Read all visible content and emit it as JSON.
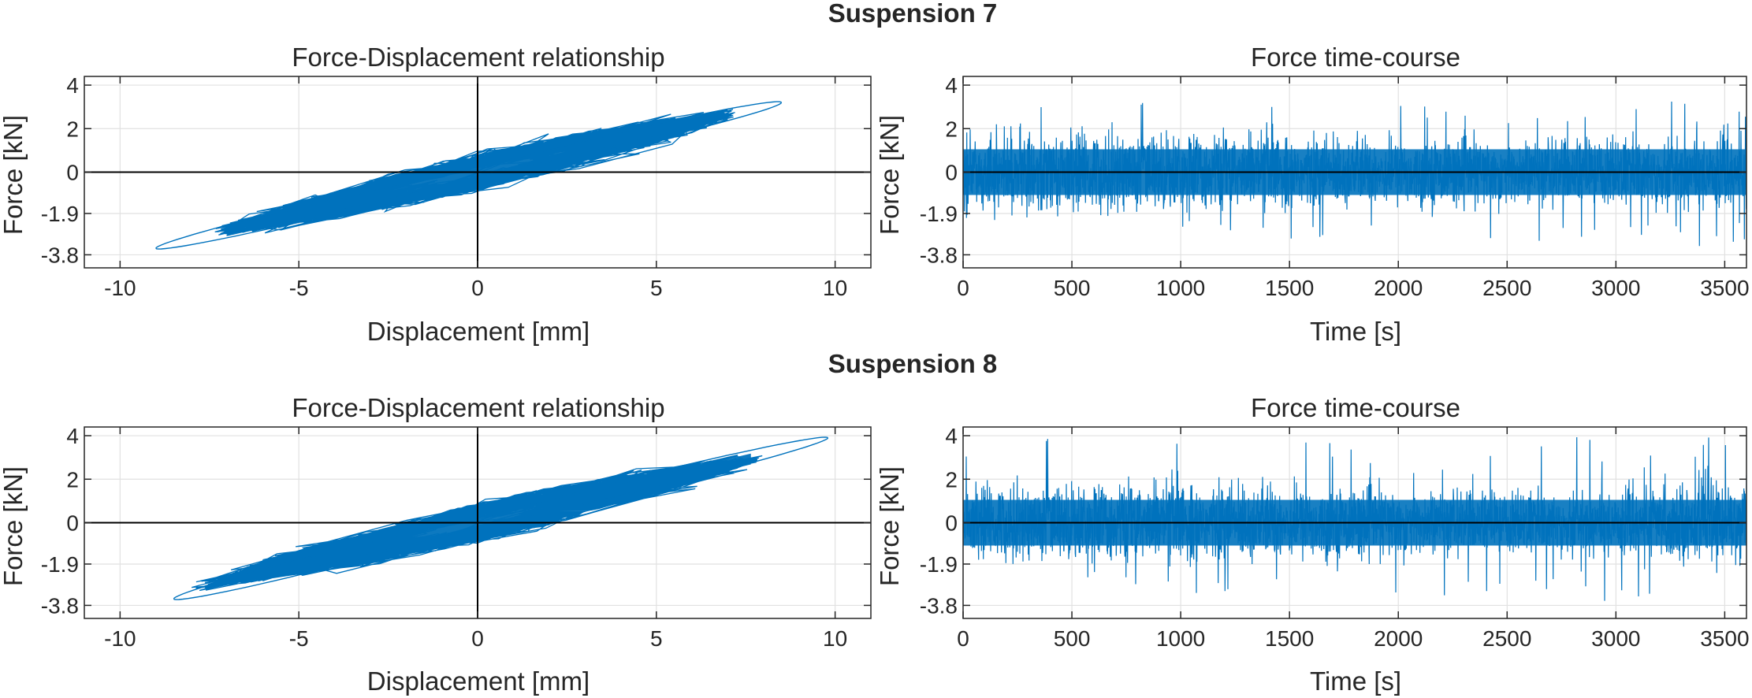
{
  "colors": {
    "series": "#0072BD",
    "axis": "#262626",
    "grid": "#e1e1e1",
    "zero": "#000000",
    "background": "#ffffff"
  },
  "chart_data": [
    {
      "suptitle": "Suspension 7",
      "panels": [
        {
          "type": "line",
          "subtype": "hysteresis",
          "title": "Force-Displacement relationship",
          "xlabel": "Displacement [mm]",
          "ylabel": "Force [kN]",
          "xlim": [
            -11,
            11
          ],
          "ylim": [
            -4.4,
            4.4
          ],
          "xticks": [
            -10,
            -5,
            0,
            5,
            10
          ],
          "yticks": [
            -3.8,
            -1.9,
            0,
            2,
            4
          ],
          "xtick_labels": [
            "-10",
            "-5",
            "0",
            "5",
            "10"
          ],
          "ytick_labels": [
            "-3.8",
            "-1.9",
            "0",
            "2",
            "4"
          ],
          "grid": true,
          "series": [
            {
              "name": "Suspension 7",
              "slope_kN_per_mm": 0.37,
              "x_range": [
                -9.0,
                8.5
              ],
              "y_range": [
                -3.5,
                3.2
              ],
              "color": "#0072BD"
            }
          ]
        },
        {
          "type": "line",
          "subtype": "time-series",
          "title": "Force time-course",
          "xlabel": "Time [s]",
          "ylabel": "Force [kN]",
          "xlim": [
            0,
            3600
          ],
          "ylim": [
            -4.4,
            4.4
          ],
          "xticks": [
            0,
            500,
            1000,
            1500,
            2000,
            2500,
            3000,
            3500
          ],
          "yticks": [
            -3.8,
            -1.9,
            0,
            2,
            4
          ],
          "xtick_labels": [
            "0",
            "500",
            "1000",
            "1500",
            "2000",
            "2500",
            "3000",
            "3500"
          ],
          "ytick_labels": [
            "-3.8",
            "-1.9",
            "0",
            "2",
            "4"
          ],
          "grid": true,
          "series": [
            {
              "name": "Suspension 7",
              "amplitude_kN": 1.4,
              "peak_kN": [
                -3.5,
                3.3
              ],
              "duration_s": 3600,
              "color": "#0072BD"
            }
          ]
        }
      ]
    },
    {
      "suptitle": "Suspension 8",
      "panels": [
        {
          "type": "line",
          "subtype": "hysteresis",
          "title": "Force-Displacement relationship",
          "xlabel": "Displacement [mm]",
          "ylabel": "Force [kN]",
          "xlim": [
            -11,
            11
          ],
          "ylim": [
            -4.4,
            4.4
          ],
          "xticks": [
            -10,
            -5,
            0,
            5,
            10
          ],
          "yticks": [
            -3.8,
            -1.9,
            0,
            2,
            4
          ],
          "xtick_labels": [
            "-10",
            "-5",
            "0",
            "5",
            "10"
          ],
          "ytick_labels": [
            "-3.8",
            "-1.9",
            "0",
            "2",
            "4"
          ],
          "grid": true,
          "series": [
            {
              "name": "Suspension 8",
              "slope_kN_per_mm": 0.37,
              "x_range": [
                -8.5,
                9.8
              ],
              "y_range": [
                -3.5,
                3.9
              ],
              "color": "#0072BD"
            }
          ]
        },
        {
          "type": "line",
          "subtype": "time-series",
          "title": "Force time-course",
          "xlabel": "Time [s]",
          "ylabel": "Force [kN]",
          "xlim": [
            0,
            3600
          ],
          "ylim": [
            -4.4,
            4.4
          ],
          "xticks": [
            0,
            500,
            1000,
            1500,
            2000,
            2500,
            3000,
            3500
          ],
          "yticks": [
            -3.8,
            -1.9,
            0,
            2,
            4
          ],
          "xtick_labels": [
            "0",
            "500",
            "1000",
            "1500",
            "2000",
            "2500",
            "3000",
            "3500"
          ],
          "ytick_labels": [
            "-3.8",
            "-1.9",
            "0",
            "2",
            "4"
          ],
          "grid": true,
          "series": [
            {
              "name": "Suspension 8",
              "amplitude_kN": 1.4,
              "peak_kN": [
                -3.7,
                4.0
              ],
              "duration_s": 3600,
              "color": "#0072BD"
            }
          ]
        }
      ]
    }
  ]
}
